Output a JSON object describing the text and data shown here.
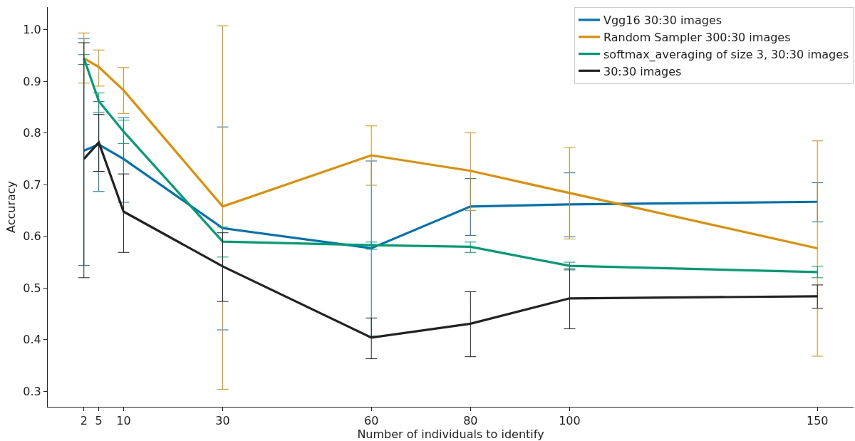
{
  "chart_data": {
    "type": "line",
    "xlabel": "Number of individuals to identify",
    "ylabel": "Accuracy",
    "x": [
      2,
      5,
      10,
      30,
      60,
      80,
      100,
      150
    ],
    "xlim": [
      -5.3,
      157.3
    ],
    "xticks": [
      2,
      5,
      10,
      30,
      60,
      80,
      100,
      150
    ],
    "ylim": [
      0.27,
      1.044
    ],
    "yticks": [
      {
        "value": 0.3,
        "label": "0.3"
      },
      {
        "value": 0.4,
        "label": "0.4"
      },
      {
        "value": 0.5,
        "label": "0.5"
      },
      {
        "value": 0.6,
        "label": "0.6"
      },
      {
        "value": 0.7,
        "label": "0.7"
      },
      {
        "value": 0.8,
        "label": "0.8"
      },
      {
        "value": 0.9,
        "label": "0.9"
      },
      {
        "value": 1.0,
        "label": "1.0"
      }
    ],
    "legend": "top right",
    "line_style": "solid",
    "series": [
      {
        "name": "Vgg16 30:30 images",
        "color": "#0173b2",
        "values": [
          0.766,
          0.778,
          0.75,
          0.616,
          0.577,
          0.658,
          0.662,
          0.667
        ],
        "errors": [
          [
            0.544,
            0.983
          ],
          [
            0.687,
            0.861
          ],
          [
            0.666,
            0.83
          ],
          [
            0.419,
            0.812
          ],
          [
            0.407,
            0.746
          ],
          [
            0.602,
            0.712
          ],
          [
            0.599,
            0.723
          ],
          [
            0.628,
            0.704
          ]
        ]
      },
      {
        "name": "Random Sampler 300:30 images",
        "color": "#de8f05",
        "values": [
          0.945,
          0.928,
          0.883,
          0.658,
          0.757,
          0.727,
          0.684,
          0.577
        ],
        "errors": [
          [
            0.897,
            0.994
          ],
          [
            0.891,
            0.961
          ],
          [
            0.838,
            0.927
          ],
          [
            0.304,
            1.008
          ],
          [
            0.699,
            0.814
          ],
          [
            0.65,
            0.801
          ],
          [
            0.595,
            0.772
          ],
          [
            0.368,
            0.785
          ]
        ]
      },
      {
        "name": "softmax_averaging of size 3, 30:30 images",
        "color": "#029e73",
        "values": [
          0.945,
          0.862,
          0.803,
          0.59,
          0.583,
          0.58,
          0.543,
          0.531
        ],
        "errors": [
          [
            0.933,
            0.952
          ],
          [
            0.84,
            0.878
          ],
          [
            0.78,
            0.825
          ],
          [
            0.56,
            0.618
          ],
          [
            0.575,
            0.589
          ],
          [
            0.569,
            0.589
          ],
          [
            0.535,
            0.55
          ],
          [
            0.52,
            0.542
          ]
        ]
      },
      {
        "name": "30:30 images",
        "color": "#222222",
        "values": [
          0.75,
          0.782,
          0.648,
          0.542,
          0.404,
          0.431,
          0.48,
          0.484
        ],
        "errors": [
          [
            0.52,
            0.975
          ],
          [
            0.726,
            0.836
          ],
          [
            0.569,
            0.721
          ],
          [
            0.474,
            0.607
          ],
          [
            0.363,
            0.442
          ],
          [
            0.367,
            0.493
          ],
          [
            0.421,
            0.537
          ],
          [
            0.461,
            0.506
          ]
        ]
      }
    ]
  }
}
